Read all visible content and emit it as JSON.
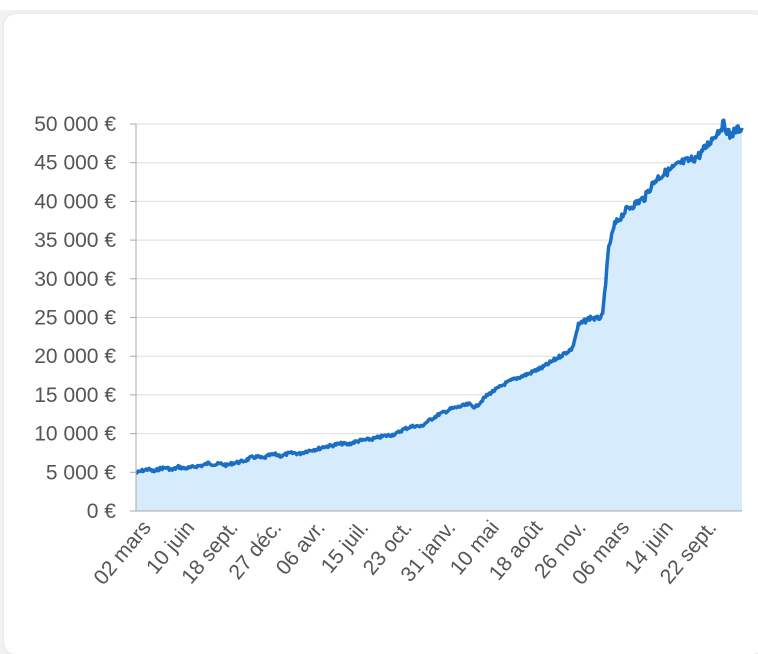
{
  "chart_data": {
    "type": "area",
    "title": "",
    "xlabel": "",
    "ylabel": "",
    "ylim": [
      0,
      50000
    ],
    "grid": true,
    "legend": "none",
    "colors": {
      "line": "#1a6fc4",
      "fill": "#d6ebfc",
      "grid": "#dddddd",
      "axis": "#aaaaaa",
      "text": "#555555"
    },
    "y_ticks": [
      {
        "value": 0,
        "label": "0 €"
      },
      {
        "value": 5000,
        "label": "5 000 €"
      },
      {
        "value": 10000,
        "label": "10 000 €"
      },
      {
        "value": 15000,
        "label": "15 000 €"
      },
      {
        "value": 20000,
        "label": "20 000 €"
      },
      {
        "value": 25000,
        "label": "25 000 €"
      },
      {
        "value": 30000,
        "label": "30 000 €"
      },
      {
        "value": 35000,
        "label": "35 000 €"
      },
      {
        "value": 40000,
        "label": "40 000 €"
      },
      {
        "value": 45000,
        "label": "45 000 €"
      },
      {
        "value": 50000,
        "label": "50 000 €"
      }
    ],
    "x_ticks": [
      "02 mars",
      "10 juin",
      "18 sept.",
      "27 déc.",
      "06 avr.",
      "15 juil.",
      "23 oct.",
      "31 janv.",
      "10 mai",
      "18 août",
      "26 nov.",
      "06 mars",
      "14 juin",
      "22 sept."
    ],
    "series": [
      {
        "x": [
          0,
          0.5,
          1,
          1.5,
          2,
          2.5,
          3,
          3.5,
          4,
          4.5,
          5,
          5.5,
          6,
          6.5,
          7,
          7.5,
          8,
          8.5,
          9,
          9.5,
          10,
          10.5,
          11,
          11.5,
          12,
          12.5,
          13,
          13.5,
          14,
          14.5,
          15,
          15.5,
          16,
          16.5,
          17,
          17.5,
          18,
          18.5,
          19,
          19.5,
          20,
          20.5,
          21,
          21.5,
          22,
          22.5,
          23,
          23.5,
          24,
          24.5,
          25,
          25.5,
          26,
          26.5,
          27,
          27.5,
          28,
          28.5,
          29,
          29.5,
          30,
          30.5,
          31,
          31.5,
          32,
          32.5,
          33,
          33.5,
          34,
          34.5,
          35,
          35.5,
          36,
          36.5,
          37,
          37.5,
          38,
          38.5,
          39,
          39.5,
          40,
          40.5,
          41,
          41.5,
          42,
          42.5,
          43,
          43.5,
          44,
          44.5,
          45,
          45.5,
          46,
          46.5,
          47,
          47.5,
          48,
          48.5,
          49,
          49.5,
          50
        ],
        "values": [
          4900,
          5200,
          5400,
          5100,
          5500,
          5600,
          5300,
          5700,
          5500,
          5600,
          5800,
          5900,
          6200,
          6000,
          6100,
          5900,
          6200,
          6300,
          6500,
          6900,
          7000,
          6800,
          7200,
          7300,
          7100,
          7400,
          7500,
          7400,
          7700,
          7900,
          8000,
          8300,
          8400,
          8600,
          8700,
          8600,
          8900,
          9100,
          9200,
          9300,
          9500,
          9700,
          9800,
          10000,
          10500,
          10800,
          11000,
          10900,
          11500,
          12000,
          12500,
          12800,
          13200,
          13400,
          13600,
          13800,
          13400,
          14200,
          15000,
          15500,
          16000,
          16500,
          16900,
          17200,
          17500,
          17800,
          18200,
          18500,
          19000,
          19500,
          20000,
          20500,
          21000,
          24000,
          24500,
          25000,
          24800,
          25200,
          34000,
          37000,
          38000,
          39000,
          39500,
          40000,
          40500,
          42000,
          43000,
          43500,
          44000,
          44500,
          45000,
          45200,
          45500,
          46000,
          47000,
          48000,
          49000,
          50000,
          48500,
          49200,
          49500
        ]
      }
    ]
  }
}
